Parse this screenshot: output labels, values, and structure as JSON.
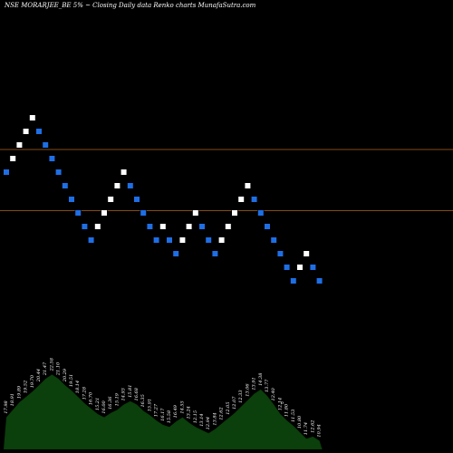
{
  "header": {
    "title": "NSE MORARJEE_BE 5% ~  Closing Daily data  Renko  charts MunafaSutra.com"
  },
  "chart_data": {
    "type": "renko",
    "title": "NSE MORARJEE_BE 5% ~  Closing Daily data  Renko  charts MunafaSutra.com",
    "colors": {
      "up": "#ffffff",
      "down": "#1e6fe6",
      "line": "#b0641e",
      "volume": "#0b3f0b",
      "background": "#000000"
    },
    "y_range": [
      5,
      25
    ],
    "x_range": [
      0,
      50
    ],
    "reference_lines": [
      18.4,
      15.7
    ],
    "bricks": [
      {
        "i": 0,
        "v": 17.4,
        "d": "down"
      },
      {
        "i": 1,
        "v": 18.0,
        "d": "up"
      },
      {
        "i": 2,
        "v": 18.6,
        "d": "up"
      },
      {
        "i": 3,
        "v": 19.2,
        "d": "up"
      },
      {
        "i": 4,
        "v": 19.8,
        "d": "up"
      },
      {
        "i": 5,
        "v": 19.2,
        "d": "down"
      },
      {
        "i": 6,
        "v": 18.6,
        "d": "down"
      },
      {
        "i": 7,
        "v": 18.0,
        "d": "down"
      },
      {
        "i": 8,
        "v": 17.4,
        "d": "down"
      },
      {
        "i": 9,
        "v": 16.8,
        "d": "down"
      },
      {
        "i": 10,
        "v": 16.2,
        "d": "down"
      },
      {
        "i": 11,
        "v": 15.6,
        "d": "down"
      },
      {
        "i": 12,
        "v": 15.0,
        "d": "down"
      },
      {
        "i": 13,
        "v": 14.4,
        "d": "down"
      },
      {
        "i": 14,
        "v": 15.0,
        "d": "up"
      },
      {
        "i": 15,
        "v": 15.6,
        "d": "up"
      },
      {
        "i": 16,
        "v": 16.2,
        "d": "up"
      },
      {
        "i": 17,
        "v": 16.8,
        "d": "up"
      },
      {
        "i": 18,
        "v": 17.4,
        "d": "up"
      },
      {
        "i": 19,
        "v": 16.8,
        "d": "down"
      },
      {
        "i": 20,
        "v": 16.2,
        "d": "down"
      },
      {
        "i": 21,
        "v": 15.6,
        "d": "down"
      },
      {
        "i": 22,
        "v": 15.0,
        "d": "down"
      },
      {
        "i": 23,
        "v": 14.4,
        "d": "down"
      },
      {
        "i": 24,
        "v": 15.0,
        "d": "up"
      },
      {
        "i": 25,
        "v": 14.4,
        "d": "down"
      },
      {
        "i": 26,
        "v": 13.8,
        "d": "down"
      },
      {
        "i": 27,
        "v": 14.4,
        "d": "up"
      },
      {
        "i": 28,
        "v": 15.0,
        "d": "up"
      },
      {
        "i": 29,
        "v": 15.6,
        "d": "up"
      },
      {
        "i": 30,
        "v": 15.0,
        "d": "down"
      },
      {
        "i": 31,
        "v": 14.4,
        "d": "down"
      },
      {
        "i": 32,
        "v": 13.8,
        "d": "down"
      },
      {
        "i": 33,
        "v": 14.4,
        "d": "up"
      },
      {
        "i": 34,
        "v": 15.0,
        "d": "up"
      },
      {
        "i": 35,
        "v": 15.6,
        "d": "up"
      },
      {
        "i": 36,
        "v": 16.2,
        "d": "up"
      },
      {
        "i": 37,
        "v": 16.8,
        "d": "up"
      },
      {
        "i": 38,
        "v": 16.2,
        "d": "down"
      },
      {
        "i": 39,
        "v": 15.6,
        "d": "down"
      },
      {
        "i": 40,
        "v": 15.0,
        "d": "down"
      },
      {
        "i": 41,
        "v": 14.4,
        "d": "down"
      },
      {
        "i": 42,
        "v": 13.8,
        "d": "down"
      },
      {
        "i": 43,
        "v": 13.2,
        "d": "down"
      },
      {
        "i": 44,
        "v": 12.6,
        "d": "down"
      },
      {
        "i": 45,
        "v": 13.2,
        "d": "up"
      },
      {
        "i": 46,
        "v": 13.8,
        "d": "up"
      },
      {
        "i": 47,
        "v": 13.2,
        "d": "down"
      },
      {
        "i": 48,
        "v": 12.6,
        "d": "down"
      }
    ],
    "volume_labels": [
      "17.98",
      "18.91",
      "19.89",
      "19.52",
      "19.70",
      "20.44",
      "21.47",
      "22.58",
      "21.10",
      "20.29",
      "19.51",
      "18.14",
      "17.28",
      "16.70",
      "15.21",
      "16.00",
      "16.36",
      "15.19",
      "14.93",
      "15.81",
      "16.68",
      "16.35",
      "15.91",
      "17.27",
      "16.17",
      "15.58",
      "16.49",
      "14.55",
      "13.24",
      "12.15",
      "13.14",
      "12.94",
      "13.84",
      "12.62",
      "12.05",
      "12.07",
      "12.33",
      "13.06",
      "13.91",
      "14.38",
      "13.77",
      "12.40",
      "12.14",
      "11.80",
      "11.53",
      "10.80",
      "11.74",
      "12.62",
      "10.94"
    ],
    "volume_levels": [
      0.3,
      0.37,
      0.44,
      0.49,
      0.54,
      0.6,
      0.66,
      0.7,
      0.66,
      0.6,
      0.55,
      0.49,
      0.43,
      0.38,
      0.33,
      0.3,
      0.34,
      0.37,
      0.42,
      0.45,
      0.42,
      0.36,
      0.32,
      0.27,
      0.23,
      0.21,
      0.26,
      0.3,
      0.25,
      0.21,
      0.18,
      0.15,
      0.19,
      0.24,
      0.29,
      0.34,
      0.4,
      0.46,
      0.52,
      0.56,
      0.5,
      0.42,
      0.33,
      0.27,
      0.22,
      0.16,
      0.1,
      0.12,
      0.08
    ],
    "extra_marks": [
      "o"
    ]
  }
}
